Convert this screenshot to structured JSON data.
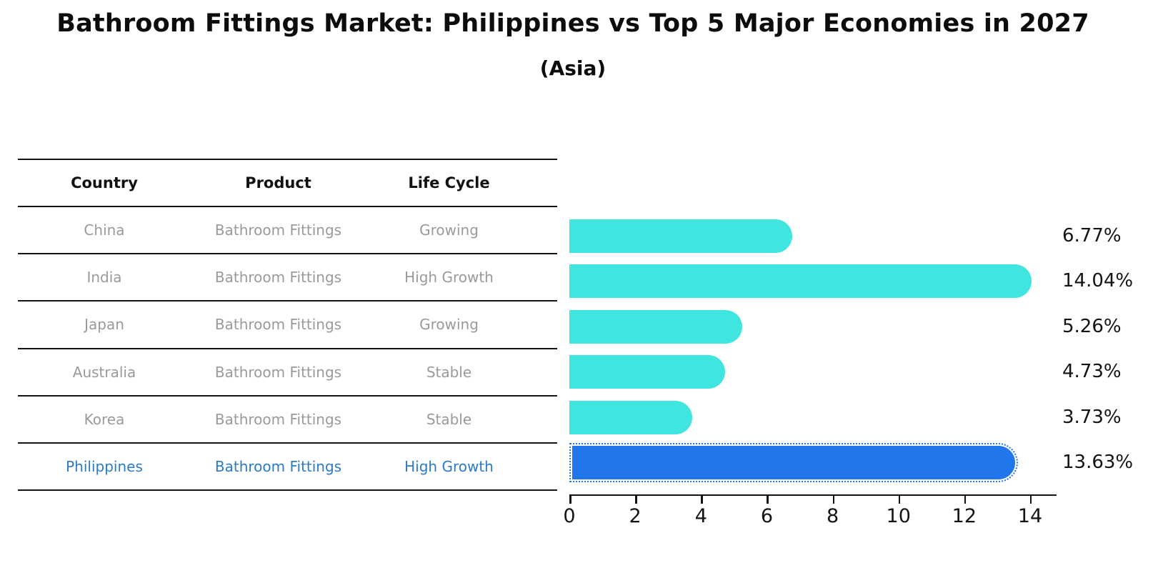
{
  "title": "Bathroom Fittings Market: Philippines vs Top 5 Major Economies in 2027",
  "subtitle": "(Asia)",
  "table": {
    "headers": [
      "Country",
      "Product",
      "Life Cycle"
    ],
    "rows": [
      {
        "country": "China",
        "product": "Bathroom Fittings",
        "life_cycle": "Growing",
        "highlight": false
      },
      {
        "country": "India",
        "product": "Bathroom Fittings",
        "life_cycle": "High Growth",
        "highlight": false
      },
      {
        "country": "Japan",
        "product": "Bathroom Fittings",
        "life_cycle": "Growing",
        "highlight": false
      },
      {
        "country": "Australia",
        "product": "Bathroom Fittings",
        "life_cycle": "Stable",
        "highlight": false
      },
      {
        "country": "Korea",
        "product": "Bathroom Fittings",
        "life_cycle": "Stable",
        "highlight": false
      },
      {
        "country": "Philippines",
        "product": "Bathroom Fittings",
        "life_cycle": "High Growth",
        "highlight": true
      }
    ]
  },
  "chart_data": {
    "type": "bar",
    "orientation": "horizontal",
    "categories": [
      "China",
      "India",
      "Japan",
      "Australia",
      "Korea",
      "Philippines"
    ],
    "values": [
      6.77,
      14.04,
      5.26,
      4.73,
      3.73,
      13.63
    ],
    "value_labels": [
      "6.77%",
      "14.04%",
      "5.26%",
      "4.73%",
      "3.73%",
      "13.63%"
    ],
    "title": "Bathroom Fittings Market: Philippines vs Top 5 Major Economies in 2027 (Asia)",
    "xlabel": "",
    "ylabel": "",
    "xlim": [
      0,
      14.76
    ],
    "x_ticks": [
      0,
      2,
      4,
      6,
      8,
      10,
      12,
      14
    ],
    "grid": false,
    "legend": null,
    "bar_color": "#41e5e0",
    "highlight_color": "#2176ec",
    "highlight_index": 5,
    "highlight_style": "dotted-outline",
    "bar_cap": "rounded-right"
  }
}
